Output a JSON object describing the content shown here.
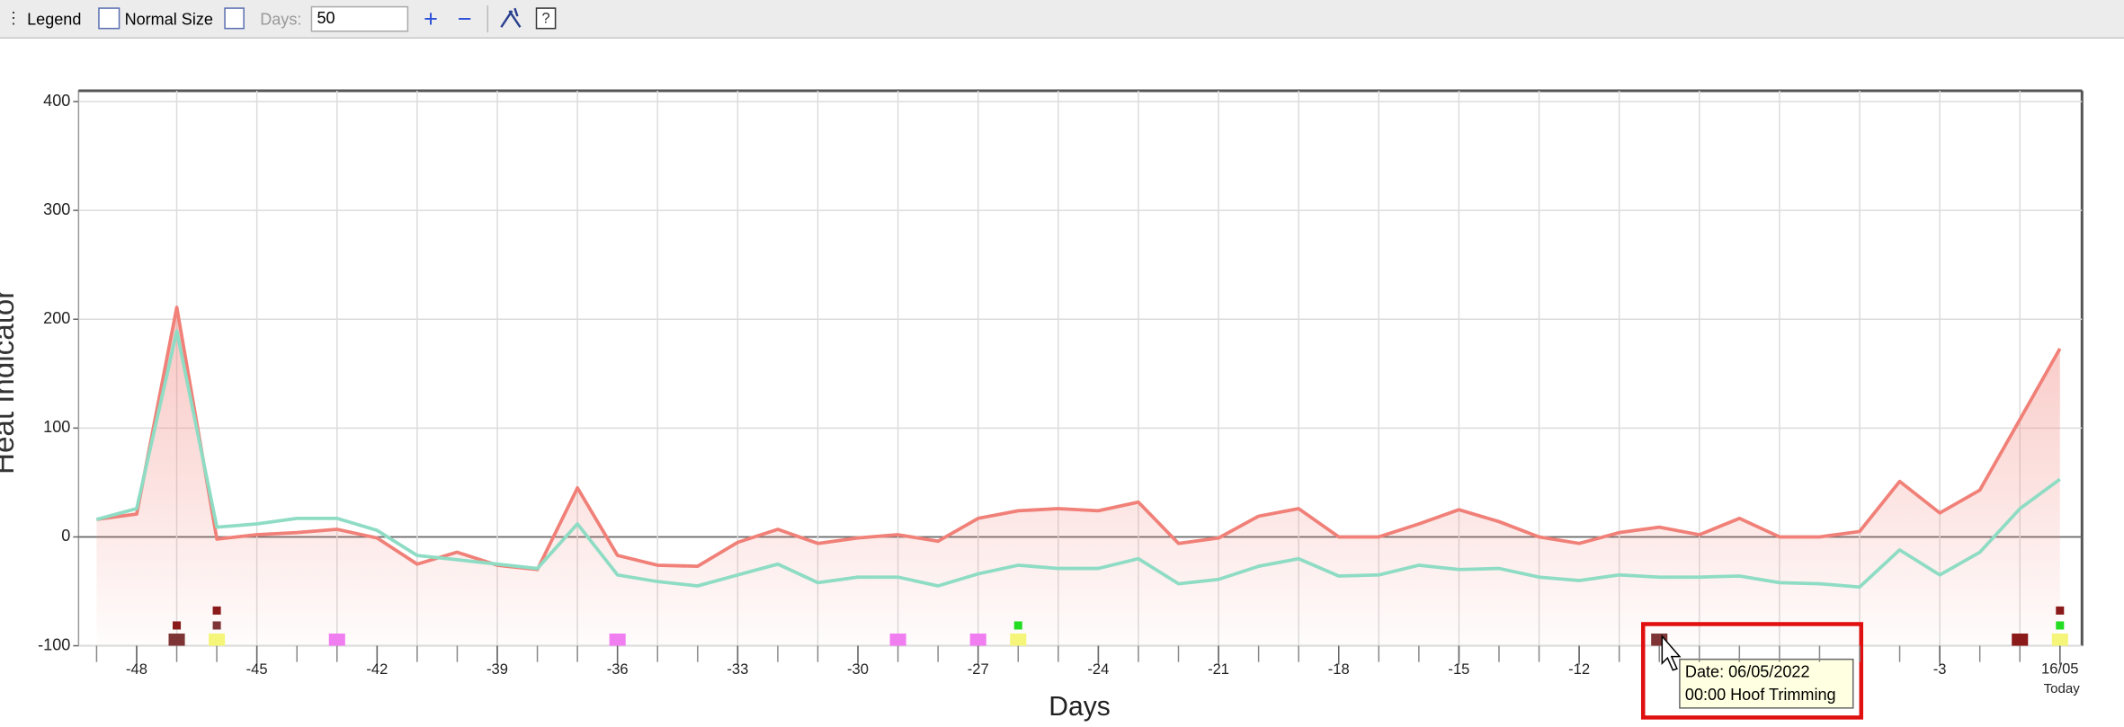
{
  "toolbar": {
    "legend": "Legend",
    "normal_size": "Normal Size",
    "days_label": "Days:",
    "days_value": "50",
    "plus": "+",
    "minus": "−"
  },
  "chart_data": {
    "type": "line",
    "x_label": "Days",
    "y_label": "Heat Indicator",
    "x": [
      -49,
      -48,
      -47,
      -46,
      -45,
      -44,
      -43,
      -42,
      -41,
      -40,
      -39,
      -38,
      -37,
      -36,
      -35,
      -34,
      -33,
      -32,
      -31,
      -30,
      -29,
      -28,
      -27,
      -26,
      -25,
      -24,
      -23,
      -22,
      -21,
      -20,
      -19,
      -18,
      -17,
      -16,
      -15,
      -14,
      -13,
      -12,
      -11,
      -10,
      -9,
      -8,
      -7,
      -6,
      -5,
      -4,
      -3,
      -2,
      -1,
      0
    ],
    "series": [
      {
        "color": "#f08078",
        "values": [
          16,
          21,
          211,
          -2,
          2,
          4,
          7,
          -1,
          -25,
          -14,
          -26,
          -30,
          45,
          -17,
          -26,
          -27,
          -5,
          7,
          -6,
          -1,
          2,
          -4,
          17,
          24,
          26,
          24,
          32,
          -6,
          -1,
          19,
          26,
          0,
          0,
          12,
          25,
          14,
          0,
          -6,
          4,
          9,
          2,
          17,
          0,
          0,
          5,
          51,
          22,
          43,
          108,
          173
        ]
      },
      {
        "color": "#8fdcc4",
        "values": [
          16,
          26,
          189,
          9,
          12,
          17,
          17,
          6,
          -17,
          -21,
          -25,
          -29,
          12,
          -35,
          -41,
          -45,
          -35,
          -25,
          -42,
          -37,
          -37,
          -45,
          -34,
          -26,
          -29,
          -29,
          -20,
          -43,
          -39,
          -27,
          -20,
          -36,
          -35,
          -26,
          -30,
          -29,
          -37,
          -40,
          -35,
          -37,
          -37,
          -36,
          -42,
          -43,
          -46,
          -12,
          -35,
          -14,
          26,
          53
        ]
      }
    ],
    "xlim": [
      -49.45,
      0.55
    ],
    "xticks": [
      -48,
      -45,
      -42,
      -39,
      -36,
      -33,
      -30,
      -27,
      -24,
      -21,
      -18,
      -15,
      -12,
      -3,
      {
        "value": 0,
        "label": "16/05 Today"
      }
    ],
    "xgrid": [
      -47,
      -45,
      -43,
      -41,
      -39,
      -37,
      -35,
      -33,
      -31,
      -29,
      -27,
      -25,
      -23,
      -21,
      -19,
      -17,
      -15,
      -13,
      -11,
      -9,
      -7,
      -5,
      -3,
      -1
    ],
    "ylim": [
      -100,
      400
    ],
    "yticks": [
      -100,
      0,
      100,
      200,
      300,
      400
    ],
    "grid": true,
    "events": [
      {
        "x": -47,
        "color": "#7e3434"
      },
      {
        "x": -47,
        "color": "#8b1a1a"
      },
      {
        "x": -46,
        "color": "#f5f57a"
      },
      {
        "x": -46,
        "color": "#7e3434"
      },
      {
        "x": -46,
        "color": "#8b1a1a"
      },
      {
        "x": -43,
        "color": "#f07ef0"
      },
      {
        "x": -36,
        "color": "#f07ef0"
      },
      {
        "x": -29,
        "color": "#f07ef0"
      },
      {
        "x": -27,
        "color": "#f07ef0"
      },
      {
        "x": -26,
        "color": "#f5f57a"
      },
      {
        "x": -26,
        "color": "#22dd22"
      },
      {
        "x": -10,
        "color": "#7e3434"
      },
      {
        "x": -1,
        "color": "#8b1a1a"
      },
      {
        "x": 0,
        "color": "#f5f57a"
      },
      {
        "x": 0,
        "color": "#22dd22"
      },
      {
        "x": 0,
        "color": "#8b1a1a"
      }
    ]
  },
  "tooltip": {
    "line1": "Date: 06/05/2022",
    "line2": "00:00 Hoof Trimming"
  }
}
